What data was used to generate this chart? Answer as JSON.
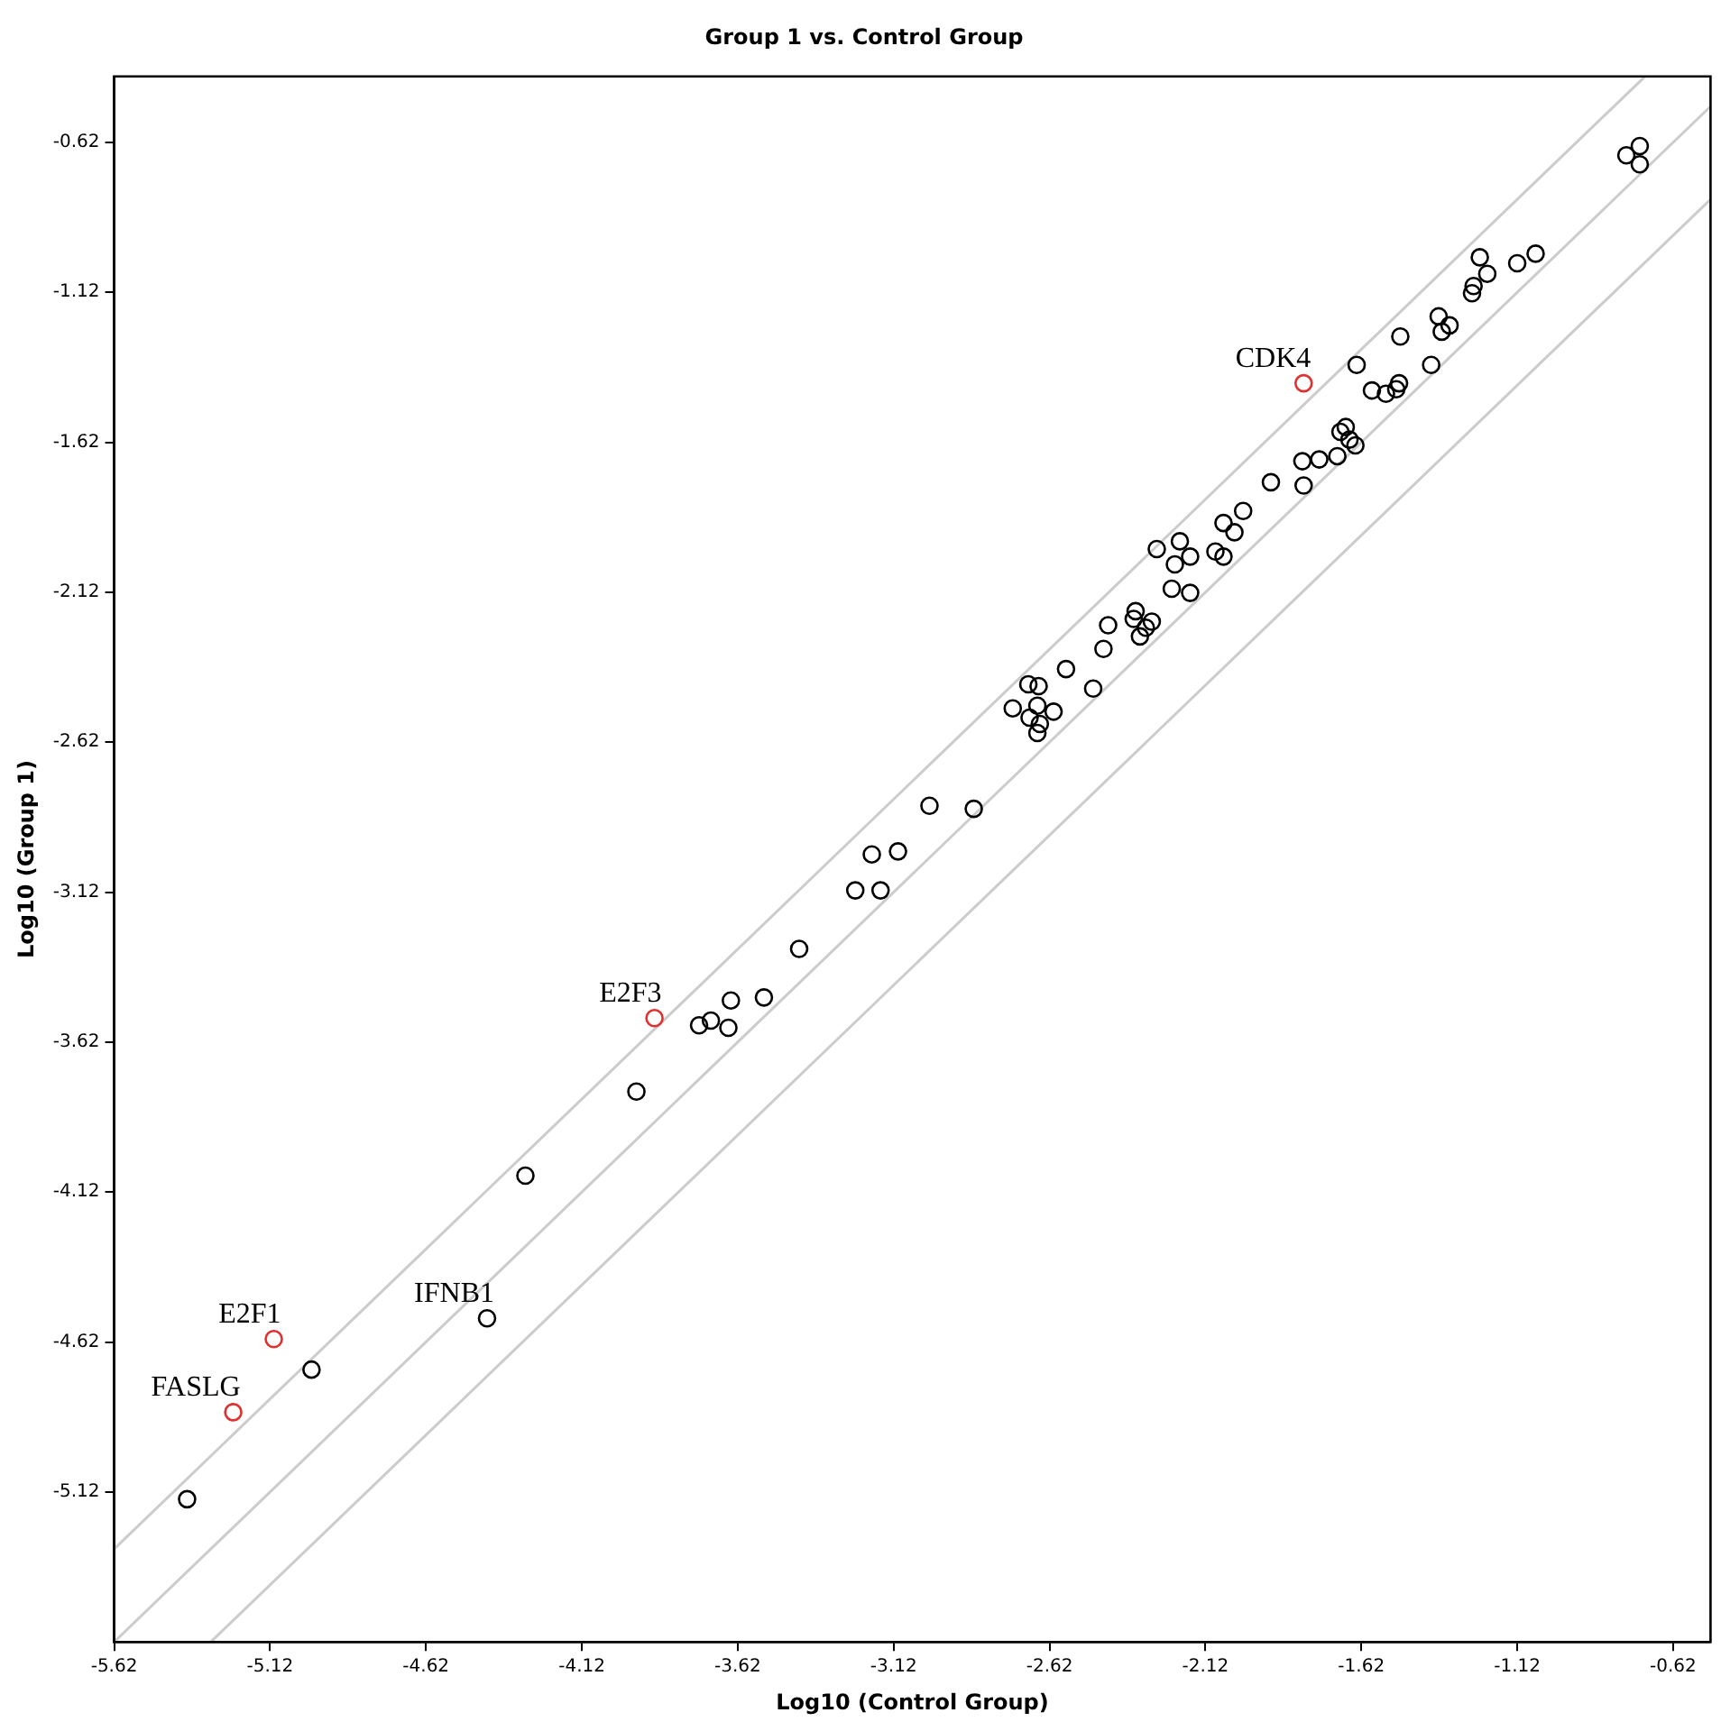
{
  "chart_data": {
    "type": "scatter",
    "title": "Group 1 vs. Control Group",
    "xlabel": "Log10 (Control Group)",
    "ylabel": "Log10 (Group 1)",
    "xlim": [
      -5.62,
      -0.5
    ],
    "ylim": [
      -5.62,
      -0.4
    ],
    "xticks": [
      -5.62,
      -5.12,
      -4.62,
      -4.12,
      -3.62,
      -3.12,
      -2.62,
      -2.12,
      -1.62,
      -1.12,
      -0.62
    ],
    "yticks": [
      -5.12,
      -4.62,
      -4.12,
      -3.62,
      -3.12,
      -2.62,
      -2.12,
      -1.62,
      -1.12,
      -0.62
    ],
    "grid": false,
    "legend": false,
    "marker": "circle",
    "series": [
      {
        "type": "line",
        "marker": "none",
        "color": "#cccccc",
        "x": [
          -5.62,
          -0.71
        ],
        "values": [
          -5.31,
          -0.4
        ]
      },
      {
        "type": "line",
        "marker": "none",
        "color": "#cccccc",
        "x": [
          -5.62,
          -0.5
        ],
        "values": [
          -5.62,
          -0.5
        ]
      },
      {
        "type": "line",
        "marker": "none",
        "color": "#cccccc",
        "x": [
          -5.31,
          -0.5
        ],
        "values": [
          -5.62,
          -0.81
        ]
      },
      {
        "type": "scatter",
        "color": "#000000",
        "x": [
          -5.386,
          -4.987,
          -4.424,
          -4.301,
          -3.945,
          -3.744,
          -3.706,
          -3.65,
          -3.642,
          -3.536,
          -3.423,
          -3.243,
          -3.162,
          -3.19,
          -3.106,
          -3.005,
          -2.863,
          -2.738,
          -2.688,
          -2.655,
          -2.659,
          -2.684,
          -2.607,
          -2.651,
          -2.659,
          -2.567,
          -2.48,
          -2.447,
          -2.432,
          -2.344,
          -2.35,
          -2.292,
          -2.311,
          -2.33,
          -2.276,
          -2.228,
          -2.169,
          -2.202,
          -2.218,
          -2.169,
          -2.088,
          -2.062,
          -2.062,
          -2.027,
          -1.999,
          -1.91,
          -1.805,
          -1.809,
          -1.755,
          -1.697,
          -1.687,
          -1.67,
          -1.658,
          -1.639,
          -1.635,
          -1.586,
          -1.541,
          -1.508,
          -1.499,
          -1.495,
          -1.396,
          -1.372,
          -1.362,
          -1.337,
          -1.265,
          -1.26,
          -1.24,
          -1.216,
          -1.12,
          -1.061,
          -0.77,
          -0.727,
          -0.727
        ],
        "values": [
          -5.144,
          -4.712,
          -4.541,
          -4.065,
          -3.785,
          -3.564,
          -3.548,
          -3.572,
          -3.481,
          -3.471,
          -3.309,
          -3.114,
          -3.114,
          -2.994,
          -2.984,
          -2.832,
          -2.842,
          -2.507,
          -2.427,
          -2.433,
          -2.498,
          -2.538,
          -2.518,
          -2.559,
          -2.589,
          -2.376,
          -2.441,
          -2.309,
          -2.23,
          -2.183,
          -2.209,
          -2.218,
          -2.238,
          -2.267,
          -1.976,
          -2.108,
          -2.122,
          -1.95,
          -2.027,
          -2.001,
          -1.984,
          -2.001,
          -1.889,
          -1.92,
          -1.849,
          -1.753,
          -1.764,
          -1.683,
          -1.677,
          -1.666,
          -1.585,
          -1.569,
          -1.611,
          -1.63,
          -1.362,
          -1.447,
          -1.458,
          -1.443,
          -1.423,
          -1.267,
          -1.362,
          -1.2,
          -1.251,
          -1.23,
          -1.123,
          -1.099,
          -1.003,
          -1.058,
          -1.023,
          -0.991,
          -0.663,
          -0.632,
          -0.693
        ]
      },
      {
        "type": "scatter",
        "color": "#e03030",
        "x": [
          -5.238,
          -5.108,
          -3.887,
          -1.805
        ],
        "values": [
          -4.854,
          -4.61,
          -3.54,
          -1.423
        ]
      }
    ],
    "annotations": [
      {
        "text": "CDK4",
        "x": -1.805,
        "y": -1.423
      },
      {
        "text": "E2F3",
        "x": -3.887,
        "y": -3.54
      },
      {
        "text": "E2F1",
        "x": -5.108,
        "y": -4.61
      },
      {
        "text": "FASLG",
        "x": -5.238,
        "y": -4.854
      },
      {
        "text": "IFNB1",
        "x": -4.424,
        "y": -4.541
      }
    ]
  }
}
